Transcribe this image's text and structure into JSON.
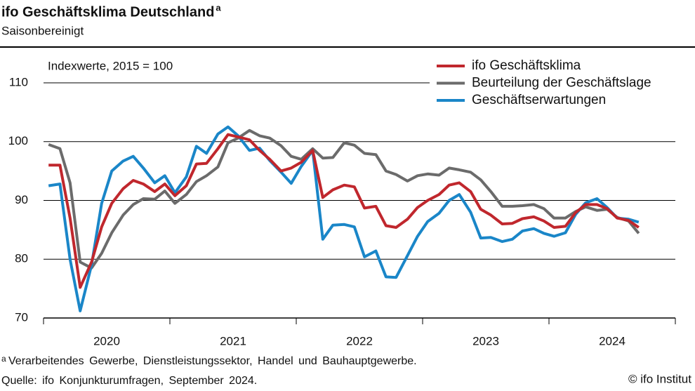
{
  "chart_data": {
    "type": "line",
    "title": "ifo Geschäftsklima Deutschland",
    "title_note": "a",
    "subtitle": "Saisonbereinigt",
    "annotation": "Indexwerte, 2015 = 100",
    "footnote": "Verarbeitendes Gewerbe, Dienstleistungssektor, Handel und Bauhauptgewerbe.",
    "source": "Quelle: ifo Konjunkturumfragen, September 2024.",
    "copyright": "© ifo Institut",
    "x": [
      2020.04,
      2020.13,
      2020.21,
      2020.29,
      2020.38,
      2020.46,
      2020.54,
      2020.63,
      2020.71,
      2020.79,
      2020.88,
      2020.96,
      2021.04,
      2021.13,
      2021.21,
      2021.29,
      2021.38,
      2021.46,
      2021.54,
      2021.63,
      2021.71,
      2021.79,
      2021.88,
      2021.96,
      2022.04,
      2022.13,
      2022.21,
      2022.29,
      2022.38,
      2022.46,
      2022.54,
      2022.63,
      2022.71,
      2022.79,
      2022.88,
      2022.96,
      2023.04,
      2023.13,
      2023.21,
      2023.29,
      2023.38,
      2023.46,
      2023.54,
      2023.63,
      2023.71,
      2023.79,
      2023.88,
      2023.96,
      2024.04,
      2024.13,
      2024.21,
      2024.29,
      2024.38,
      2024.46,
      2024.54,
      2024.63,
      2024.71
    ],
    "series": [
      {
        "name": "ifo Geschäftsklima",
        "color": "#c0272d",
        "values": [
          96.0,
          96.0,
          87.0,
          75.2,
          79.5,
          85.5,
          89.5,
          92.0,
          93.4,
          92.8,
          91.5,
          92.8,
          90.8,
          92.5,
          96.2,
          96.3,
          98.8,
          101.2,
          100.8,
          100.3,
          98.5,
          97.0,
          95.0,
          95.5,
          96.5,
          98.5,
          90.5,
          91.8,
          92.6,
          92.3,
          88.7,
          89.0,
          85.7,
          85.4,
          86.8,
          88.8,
          90.0,
          91.0,
          92.6,
          93.0,
          91.5,
          88.5,
          87.5,
          86.0,
          86.1,
          86.9,
          87.2,
          86.5,
          85.4,
          85.6,
          87.9,
          89.3,
          89.3,
          88.6,
          87.0,
          86.6,
          85.4
        ]
      },
      {
        "name": "Beurteilung der Geschäftslage",
        "color": "#6b6b6b",
        "values": [
          99.5,
          98.8,
          93.0,
          79.5,
          78.5,
          81.0,
          84.5,
          87.5,
          89.3,
          90.3,
          90.2,
          91.6,
          89.5,
          91.0,
          93.2,
          94.2,
          95.7,
          99.8,
          100.6,
          101.9,
          101.0,
          100.6,
          99.3,
          97.5,
          97.0,
          98.8,
          97.2,
          97.3,
          99.8,
          99.4,
          98.0,
          97.8,
          95.0,
          94.4,
          93.3,
          94.2,
          94.5,
          94.3,
          95.5,
          95.2,
          94.8,
          93.5,
          91.5,
          89.0,
          89.0,
          89.1,
          89.3,
          88.6,
          87.0,
          87.0,
          88.1,
          88.9,
          88.3,
          88.5,
          87.1,
          86.5,
          84.4
        ]
      },
      {
        "name": "Geschäftserwartungen",
        "color": "#1a86c8",
        "values": [
          92.5,
          92.8,
          80.0,
          71.2,
          79.0,
          89.5,
          95.0,
          96.7,
          97.5,
          95.5,
          93.0,
          94.2,
          91.3,
          94.0,
          99.2,
          98.0,
          101.3,
          102.5,
          101.0,
          98.5,
          98.9,
          96.8,
          94.8,
          92.9,
          95.8,
          98.5,
          83.4,
          85.8,
          85.9,
          85.5,
          80.4,
          81.4,
          77.0,
          76.9,
          80.6,
          83.9,
          86.4,
          87.8,
          90.0,
          91.0,
          88.0,
          83.6,
          83.7,
          83.0,
          83.4,
          84.8,
          85.2,
          84.4,
          83.9,
          84.5,
          87.6,
          89.6,
          90.3,
          88.8,
          87.0,
          86.8,
          86.3
        ]
      }
    ],
    "xlim": [
      2020,
      2025
    ],
    "xticks": [
      {
        "value": 2020.5,
        "label": "2020"
      },
      {
        "value": 2021.5,
        "label": "2021"
      },
      {
        "value": 2022.5,
        "label": "2022"
      },
      {
        "value": 2023.5,
        "label": "2023"
      },
      {
        "value": 2024.5,
        "label": "2024"
      }
    ],
    "xminorticks": [
      2020,
      2021,
      2022,
      2023,
      2024,
      2025
    ],
    "ylim": [
      70,
      110
    ],
    "yticks": [
      70,
      80,
      90,
      100,
      110
    ],
    "grid": true,
    "legend": "upper right"
  }
}
